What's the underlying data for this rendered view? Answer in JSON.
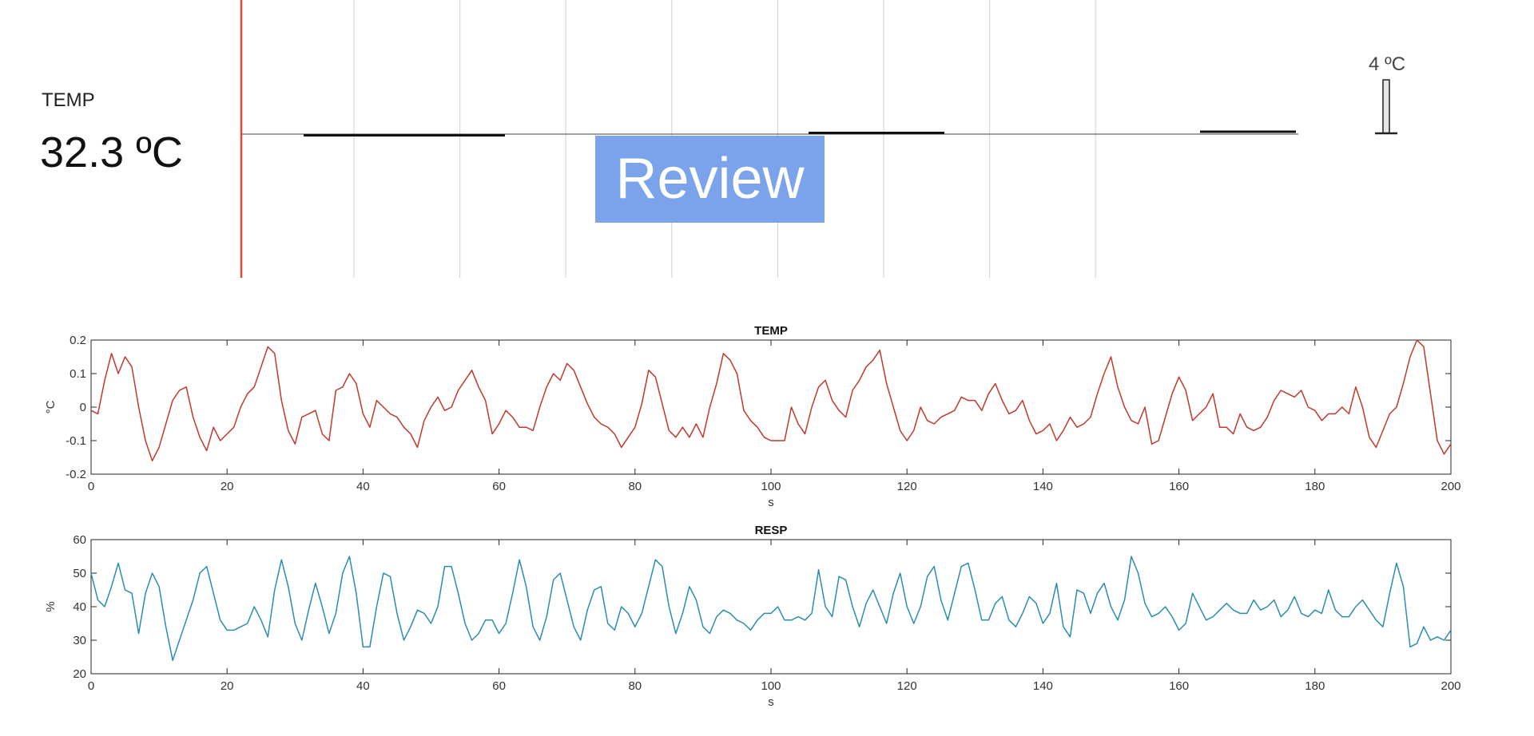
{
  "monitor": {
    "label": "TEMP",
    "value": "32.3 ºC",
    "scale_label": "4 ºC",
    "review_label": "Review"
  },
  "chart_data": [
    {
      "type": "line",
      "title": "TEMP",
      "xlabel": "s",
      "ylabel": "°C",
      "xlim": [
        0,
        200
      ],
      "ylim": [
        -0.2,
        0.2
      ],
      "xticks": [
        0,
        20,
        40,
        60,
        80,
        100,
        120,
        140,
        160,
        180,
        200
      ],
      "yticks": [
        -0.2,
        -0.1,
        0,
        0.1,
        0.2
      ],
      "ytick_labels": [
        "-0.2",
        "-0.1",
        "0",
        "0.1",
        "0.2"
      ],
      "grid": false,
      "color": "#c0392b",
      "series": [
        {
          "x": [
            0,
            1,
            2,
            3,
            4,
            5,
            6,
            7,
            8,
            9,
            10,
            11,
            12,
            13,
            14,
            15,
            16,
            17,
            18,
            19,
            20,
            21,
            22,
            23,
            24,
            25,
            26,
            27,
            28,
            29,
            30,
            31,
            32,
            33,
            34,
            35,
            36,
            37,
            38,
            39,
            40,
            41,
            42,
            43,
            44,
            45,
            46,
            47,
            48,
            49,
            50,
            51,
            52,
            53,
            54,
            55,
            56,
            57,
            58,
            59,
            60,
            61,
            62,
            63,
            64,
            65,
            66,
            67,
            68,
            69,
            70,
            71,
            72,
            73,
            74,
            75,
            76,
            77,
            78,
            79,
            80,
            81,
            82,
            83,
            84,
            85,
            86,
            87,
            88,
            89,
            90,
            91,
            92,
            93,
            94,
            95,
            96,
            97,
            98,
            99,
            100,
            101,
            102,
            103,
            104,
            105,
            106,
            107,
            108,
            109,
            110,
            111,
            112,
            113,
            114,
            115,
            116,
            117,
            118,
            119,
            120,
            121,
            122,
            123,
            124,
            125,
            126,
            127,
            128,
            129,
            130,
            131,
            132,
            133,
            134,
            135,
            136,
            137,
            138,
            139,
            140,
            141,
            142,
            143,
            144,
            145,
            146,
            147,
            148,
            149,
            150,
            151,
            152,
            153,
            154,
            155,
            156,
            157,
            158,
            159,
            160,
            161,
            162,
            163,
            164,
            165,
            166,
            167,
            168,
            169,
            170,
            171,
            172,
            173,
            174,
            175,
            176,
            177,
            178,
            179,
            180,
            181,
            182,
            183,
            184,
            185,
            186,
            187,
            188,
            189,
            190,
            191,
            192,
            193,
            194,
            195,
            196,
            197,
            198,
            199,
            200
          ],
          "y": [
            -0.01,
            -0.02,
            0.08,
            0.16,
            0.1,
            0.15,
            0.12,
            0.0,
            -0.1,
            -0.16,
            -0.12,
            -0.05,
            0.02,
            0.05,
            0.06,
            -0.03,
            -0.09,
            -0.13,
            -0.06,
            -0.1,
            -0.08,
            -0.06,
            0.0,
            0.04,
            0.06,
            0.12,
            0.18,
            0.16,
            0.02,
            -0.07,
            -0.11,
            -0.03,
            -0.02,
            -0.01,
            -0.08,
            -0.1,
            0.05,
            0.06,
            0.1,
            0.07,
            -0.02,
            -0.06,
            0.02,
            0.0,
            -0.02,
            -0.03,
            -0.06,
            -0.08,
            -0.12,
            -0.04,
            0.0,
            0.03,
            -0.01,
            0.0,
            0.05,
            0.08,
            0.11,
            0.06,
            0.02,
            -0.08,
            -0.05,
            -0.01,
            -0.03,
            -0.06,
            -0.06,
            -0.07,
            0.0,
            0.06,
            0.1,
            0.08,
            0.13,
            0.11,
            0.06,
            0.01,
            -0.03,
            -0.05,
            -0.06,
            -0.08,
            -0.12,
            -0.09,
            -0.06,
            0.01,
            0.11,
            0.09,
            0.01,
            -0.07,
            -0.09,
            -0.06,
            -0.09,
            -0.05,
            -0.09,
            0.0,
            0.07,
            0.16,
            0.14,
            0.1,
            -0.01,
            -0.04,
            -0.06,
            -0.09,
            -0.1,
            -0.1,
            -0.1,
            0.0,
            -0.05,
            -0.08,
            0.0,
            0.06,
            0.08,
            0.02,
            -0.01,
            -0.03,
            0.05,
            0.08,
            0.12,
            0.14,
            0.17,
            0.07,
            0.0,
            -0.07,
            -0.1,
            -0.07,
            0.0,
            -0.04,
            -0.05,
            -0.03,
            -0.02,
            -0.01,
            0.03,
            0.02,
            0.02,
            -0.01,
            0.04,
            0.07,
            0.02,
            -0.02,
            -0.01,
            0.02,
            -0.04,
            -0.08,
            -0.07,
            -0.05,
            -0.1,
            -0.07,
            -0.03,
            -0.06,
            -0.05,
            -0.03,
            0.04,
            0.1,
            0.15,
            0.06,
            0.0,
            -0.04,
            -0.05,
            0.0,
            -0.11,
            -0.1,
            -0.03,
            0.04,
            0.09,
            0.05,
            -0.04,
            -0.02,
            0.0,
            0.04,
            -0.06,
            -0.06,
            -0.08,
            -0.02,
            -0.06,
            -0.07,
            -0.06,
            -0.03,
            0.02,
            0.05,
            0.04,
            0.03,
            0.05,
            0.0,
            -0.01,
            -0.04,
            -0.02,
            -0.02,
            0.0,
            -0.02,
            0.06,
            0.0,
            -0.09,
            -0.12,
            -0.07,
            -0.02,
            0.0,
            0.07,
            0.15,
            0.22,
            0.18,
            0.04,
            -0.1,
            -0.14,
            -0.11
          ]
        }
      ]
    },
    {
      "type": "line",
      "title": "RESP",
      "xlabel": "s",
      "ylabel": "%",
      "xlim": [
        0,
        200
      ],
      "ylim": [
        20,
        60
      ],
      "xticks": [
        0,
        20,
        40,
        60,
        80,
        100,
        120,
        140,
        160,
        180,
        200
      ],
      "yticks": [
        20,
        30,
        40,
        50,
        60
      ],
      "ytick_labels": [
        "20",
        "30",
        "40",
        "50",
        "60"
      ],
      "grid": false,
      "color": "#2a8db0",
      "series": [
        {
          "x": [
            0,
            1,
            2,
            3,
            4,
            5,
            6,
            7,
            8,
            9,
            10,
            11,
            12,
            13,
            14,
            15,
            16,
            17,
            18,
            19,
            20,
            21,
            22,
            23,
            24,
            25,
            26,
            27,
            28,
            29,
            30,
            31,
            32,
            33,
            34,
            35,
            36,
            37,
            38,
            39,
            40,
            41,
            42,
            43,
            44,
            45,
            46,
            47,
            48,
            49,
            50,
            51,
            52,
            53,
            54,
            55,
            56,
            57,
            58,
            59,
            60,
            61,
            62,
            63,
            64,
            65,
            66,
            67,
            68,
            69,
            70,
            71,
            72,
            73,
            74,
            75,
            76,
            77,
            78,
            79,
            80,
            81,
            82,
            83,
            84,
            85,
            86,
            87,
            88,
            89,
            90,
            91,
            92,
            93,
            94,
            95,
            96,
            97,
            98,
            99,
            100,
            101,
            102,
            103,
            104,
            105,
            106,
            107,
            108,
            109,
            110,
            111,
            112,
            113,
            114,
            115,
            116,
            117,
            118,
            119,
            120,
            121,
            122,
            123,
            124,
            125,
            126,
            127,
            128,
            129,
            130,
            131,
            132,
            133,
            134,
            135,
            136,
            137,
            138,
            139,
            140,
            141,
            142,
            143,
            144,
            145,
            146,
            147,
            148,
            149,
            150,
            151,
            152,
            153,
            154,
            155,
            156,
            157,
            158,
            159,
            160,
            161,
            162,
            163,
            164,
            165,
            166,
            167,
            168,
            169,
            170,
            171,
            172,
            173,
            174,
            175,
            176,
            177,
            178,
            179,
            180,
            181,
            182,
            183,
            184,
            185,
            186,
            187,
            188,
            189,
            190,
            191,
            192,
            193,
            194,
            195,
            196,
            197,
            198,
            199,
            200
          ],
          "y": [
            50,
            42,
            40,
            46,
            53,
            45,
            44,
            32,
            44,
            50,
            46,
            34,
            24,
            30,
            36,
            42,
            50,
            52,
            44,
            36,
            33,
            33,
            34,
            35,
            40,
            36,
            31,
            45,
            54,
            46,
            35,
            30,
            39,
            47,
            40,
            32,
            38,
            50,
            55,
            44,
            28,
            28,
            40,
            50,
            49,
            38,
            30,
            34,
            39,
            38,
            35,
            40,
            52,
            52,
            44,
            35,
            30,
            32,
            36,
            36,
            32,
            35,
            44,
            54,
            46,
            34,
            30,
            37,
            48,
            50,
            42,
            34,
            30,
            39,
            45,
            46,
            35,
            33,
            40,
            38,
            34,
            38,
            46,
            54,
            52,
            40,
            32,
            38,
            46,
            42,
            34,
            32,
            37,
            39,
            38,
            36,
            35,
            33,
            36,
            38,
            38,
            40,
            36,
            36,
            37,
            36,
            38,
            51,
            40,
            37,
            49,
            48,
            40,
            34,
            41,
            45,
            40,
            35,
            44,
            50,
            40,
            35,
            40,
            49,
            52,
            42,
            36,
            44,
            52,
            53,
            45,
            36,
            36,
            41,
            43,
            36,
            34,
            38,
            43,
            41,
            35,
            38,
            47,
            34,
            31,
            45,
            44,
            38,
            44,
            47,
            40,
            36,
            42,
            55,
            50,
            41,
            37,
            38,
            40,
            37,
            33,
            35,
            44,
            40,
            36,
            37,
            39,
            41,
            39,
            38,
            38,
            42,
            39,
            40,
            42,
            37,
            39,
            43,
            38,
            37,
            39,
            38,
            45,
            39,
            37,
            37,
            40,
            42,
            39,
            36,
            34,
            44,
            53,
            46,
            28,
            29,
            34,
            30,
            31,
            30,
            33
          ]
        }
      ]
    }
  ]
}
